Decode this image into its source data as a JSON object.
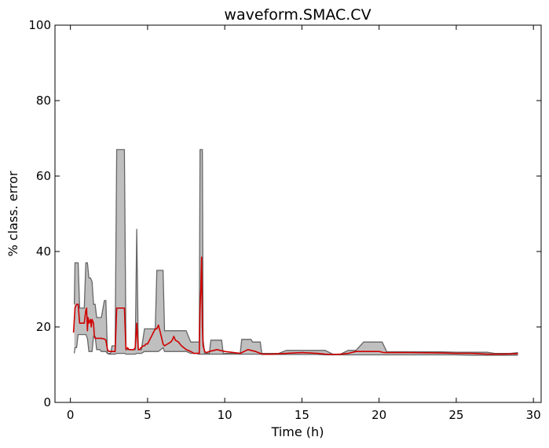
{
  "chart_data": {
    "type": "area",
    "title": "waveform.SMAC.CV",
    "xlabel": "Time (h)",
    "ylabel": "% class. error",
    "xlim": [
      -1,
      30.5
    ],
    "ylim": [
      0,
      100
    ],
    "xticks": [
      0,
      5,
      10,
      15,
      20,
      25,
      30
    ],
    "yticks": [
      0,
      20,
      40,
      60,
      80,
      100
    ],
    "grid": false,
    "legend": "none",
    "colors": {
      "band_fill": "#bfbfbf",
      "band_edge": "#666666",
      "mean_line": "#d00000"
    },
    "band": {
      "x": [
        0.25,
        0.3,
        0.4,
        0.5,
        0.6,
        0.7,
        0.8,
        0.9,
        1.0,
        1.1,
        1.2,
        1.3,
        1.4,
        1.5,
        1.6,
        1.7,
        1.8,
        1.9,
        2.0,
        2.2,
        2.3,
        2.4,
        2.5,
        2.6,
        2.7,
        2.8,
        2.9,
        3.0,
        3.2,
        3.3,
        3.4,
        3.5,
        3.6,
        3.7,
        3.8,
        3.9,
        4.0,
        4.2,
        4.3,
        4.4,
        4.45,
        4.5,
        4.55,
        4.6,
        4.8,
        4.9,
        5.0,
        5.5,
        5.6,
        5.7,
        6.0,
        6.1,
        6.5,
        6.6,
        7.0,
        7.1,
        7.5,
        7.8,
        8.0,
        8.2,
        8.3,
        8.35,
        8.4,
        8.5,
        8.55,
        8.6,
        8.7,
        8.8,
        9.0,
        9.1,
        9.8,
        9.9,
        10.0,
        11.0,
        11.1,
        11.7,
        11.8,
        12.3,
        12.4,
        13.5,
        14.0,
        15.0,
        16.0,
        16.5,
        17.0,
        17.5,
        18.0,
        18.5,
        19.0,
        20.0,
        20.2,
        20.5,
        21.0,
        22.0,
        24.0,
        25.0,
        26.0,
        27.0,
        27.5,
        28.0,
        28.5,
        29.0
      ],
      "upper": [
        26,
        37,
        37,
        37,
        25,
        25,
        25,
        25,
        37,
        37,
        33,
        33,
        32,
        26,
        26,
        22.5,
        22.5,
        22.5,
        22.5,
        27,
        27,
        13,
        13,
        13,
        15,
        15,
        15,
        67,
        67,
        67,
        67,
        67,
        14,
        14,
        14,
        14,
        14,
        14,
        46,
        14,
        14,
        14,
        14,
        14,
        19.5,
        19.5,
        19.5,
        19.5,
        35,
        35,
        35,
        19,
        19,
        19,
        19,
        19,
        19,
        16,
        16,
        16,
        16,
        16,
        67,
        67,
        67,
        16.5,
        13,
        13,
        13,
        16.5,
        16.5,
        13,
        13,
        13,
        16.7,
        16.7,
        16,
        16,
        13,
        13,
        13.8,
        13.8,
        13.8,
        13.8,
        12.8,
        12.8,
        13.8,
        13.8,
        16,
        16,
        16,
        13.4,
        13.4,
        13.4,
        13.4,
        13.3,
        13.3,
        13.3,
        13,
        13,
        13,
        13.2
      ],
      "lower": [
        13,
        14.5,
        14.5,
        18,
        18,
        18,
        18,
        18,
        18,
        17,
        13.5,
        13.5,
        13.5,
        17.5,
        17.5,
        14,
        14,
        14,
        13.5,
        13.5,
        13.5,
        13,
        12.8,
        12.8,
        12.8,
        12.8,
        12.8,
        13,
        13,
        13,
        13,
        13,
        12.8,
        12.8,
        12.8,
        12.8,
        12.8,
        12.8,
        13,
        13,
        13,
        13,
        13,
        13,
        13.5,
        13.5,
        13.5,
        13.5,
        13.5,
        13.5,
        14.5,
        13.5,
        13.5,
        13.5,
        13.5,
        13.5,
        13.5,
        13,
        13,
        13,
        12.8,
        12.8,
        12.8,
        12.8,
        12.8,
        12.8,
        12.8,
        12.8,
        12.8,
        12.8,
        12.8,
        12.8,
        12.8,
        12.8,
        12.8,
        12.8,
        12.8,
        12.8,
        12.7,
        12.7,
        12.7,
        12.7,
        12.7,
        12.6,
        12.6,
        12.6,
        12.6,
        12.6,
        12.6,
        12.6,
        12.6,
        12.6,
        12.6,
        12.6,
        12.6,
        12.6,
        12.5,
        12.5,
        12.5,
        12.5,
        12.5,
        12.5
      ]
    },
    "series": [
      {
        "x": [
          0.2,
          0.3,
          0.4,
          0.5,
          0.6,
          0.7,
          0.8,
          0.9,
          1.0,
          1.05,
          1.1,
          1.15,
          1.2,
          1.3,
          1.35,
          1.4,
          1.5,
          1.55,
          1.6,
          1.7,
          1.8,
          1.9,
          2.0,
          2.2,
          2.3,
          2.4,
          2.5,
          2.6,
          2.7,
          2.8,
          2.9,
          3.0,
          3.2,
          3.3,
          3.4,
          3.5,
          3.6,
          3.7,
          3.8,
          3.9,
          4.0,
          4.1,
          4.2,
          4.3,
          4.4,
          4.45,
          4.5,
          4.55,
          4.6,
          4.7,
          4.8,
          4.9,
          5.0,
          5.5,
          5.6,
          5.7,
          5.8,
          6.0,
          6.1,
          6.5,
          6.6,
          6.7,
          6.8,
          7.0,
          7.2,
          7.5,
          7.8,
          8.0,
          8.2,
          8.3,
          8.35,
          8.4,
          8.45,
          8.5,
          8.55,
          8.6,
          8.7,
          8.8,
          9.0,
          9.5,
          10.0,
          11.0,
          11.5,
          12.0,
          12.3,
          12.5,
          13.0,
          14.0,
          15.0,
          16.0,
          16.5,
          17.0,
          17.5,
          18.0,
          18.5,
          19.0,
          20.0,
          20.3,
          20.6,
          21.0,
          22.0,
          24.0,
          25.0,
          26.0,
          27.0,
          27.5,
          28.0,
          29.0
        ],
        "y": [
          18.5,
          25,
          26,
          26,
          21,
          21,
          21,
          21,
          24.5,
          25,
          19,
          22.5,
          21,
          22,
          20,
          22,
          21,
          17.5,
          17,
          17,
          17,
          17,
          17,
          16.8,
          16.5,
          14,
          13.5,
          13.5,
          13.5,
          13.5,
          13.5,
          25,
          25,
          25,
          25,
          25,
          14,
          14.5,
          14,
          14,
          14,
          14,
          14.5,
          21,
          14,
          14,
          14,
          14.5,
          14.5,
          15,
          15,
          15.5,
          15.5,
          19.5,
          19.5,
          20.5,
          19,
          15.5,
          15,
          16,
          16.5,
          17.5,
          16.5,
          16,
          15,
          14,
          13.5,
          13,
          13,
          13,
          13,
          25,
          30,
          38.5,
          20,
          15,
          13.5,
          13.2,
          13.5,
          14,
          13.5,
          13,
          14,
          13.5,
          13,
          12.8,
          12.8,
          13,
          13.2,
          13,
          12.8,
          12.7,
          12.8,
          13,
          13.5,
          13.5,
          13.5,
          13.2,
          13.2,
          13.2,
          13.2,
          13.1,
          13,
          13,
          12.8,
          12.8,
          12.8,
          12.9
        ]
      }
    ]
  }
}
